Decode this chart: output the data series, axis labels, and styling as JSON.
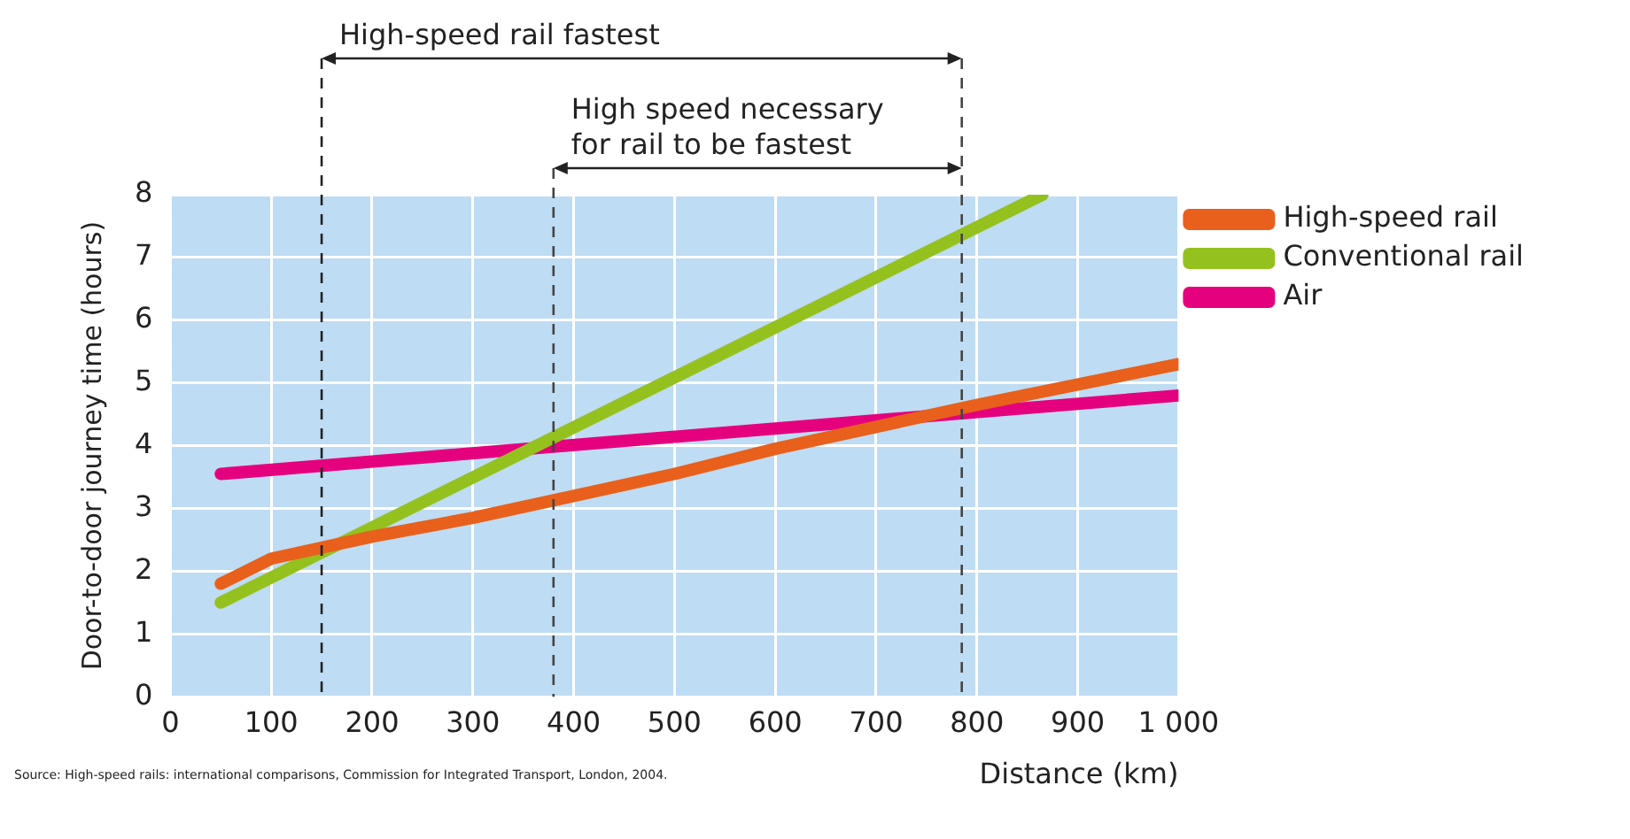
{
  "chart_data": {
    "type": "line",
    "xlabel": "Distance (km)",
    "ylabel": "Door-to-door journey time (hours)",
    "series": [
      {
        "name": "High-speed rail",
        "color": "#e8601c",
        "x": [
          50,
          100,
          200,
          300,
          400,
          500,
          600,
          700,
          800,
          1000
        ],
        "values": [
          1.8,
          2.2,
          2.55,
          2.85,
          3.2,
          3.55,
          3.95,
          4.3,
          4.65,
          5.3
        ]
      },
      {
        "name": "Conventional rail",
        "color": "#95c11f",
        "x": [
          50,
          865
        ],
        "values": [
          1.5,
          8
        ]
      },
      {
        "name": "Air",
        "color": "#e5007e",
        "x": [
          50,
          1000
        ],
        "values": [
          3.55,
          4.8
        ]
      }
    ],
    "xlim": [
      0,
      1000
    ],
    "xticks": [
      0,
      100,
      200,
      300,
      400,
      500,
      600,
      700,
      800,
      900,
      {
        "value": 1000,
        "label": "1 000"
      }
    ],
    "ylim": [
      0,
      8
    ],
    "yticks": [
      0,
      1,
      2,
      3,
      4,
      5,
      6,
      7,
      8
    ],
    "grid": true,
    "legend": "top right",
    "marker": "none",
    "line_style": "solid",
    "ref_lines": [
      {
        "axis": "x",
        "value": 150,
        "line_style": "dashed",
        "color": "#222222",
        "label": "High-speed rail fastest"
      },
      {
        "axis": "x",
        "value": 380,
        "line_style": "dashed",
        "color": "#444444",
        "label": "High speed necessary\nfor rail to be fastest"
      },
      {
        "axis": "x",
        "value": 785,
        "line_style": "dashed",
        "color": "#444444"
      }
    ],
    "annotations": [
      "Source: High-speed rails: international comparisons, Commission for Integrated Transport, London, 2004."
    ]
  }
}
